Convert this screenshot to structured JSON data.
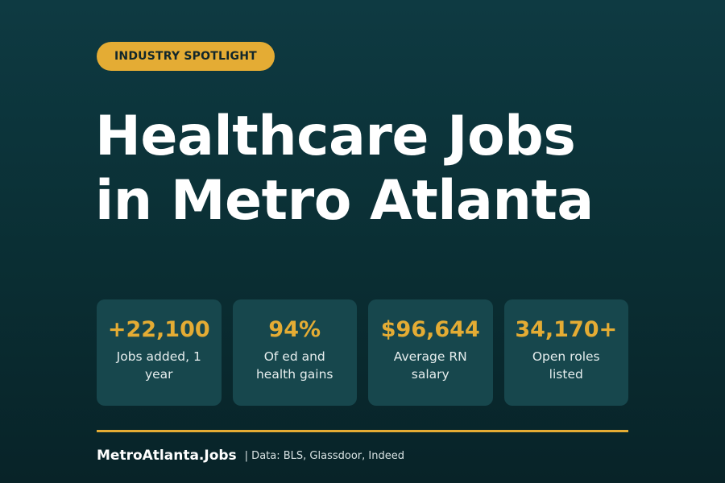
{
  "badge": "INDUSTRY SPOTLIGHT",
  "headline": {
    "line1": "Healthcare Jobs",
    "line2": "in Metro Atlanta"
  },
  "stats": [
    {
      "value": "+22,100",
      "label": "Jobs added, 1 year"
    },
    {
      "value": "94%",
      "label": "Of ed and health gains"
    },
    {
      "value": "$96,644",
      "label": "Average RN salary"
    },
    {
      "value": "34,170+",
      "label": "Open roles listed"
    }
  ],
  "footer": {
    "brand": "MetroAtlanta.Jobs",
    "source": "| Data: BLS, Glassdoor, Indeed"
  },
  "colors": {
    "accent": "#e4ac34",
    "background": "#0a2e33",
    "card": "#17474d",
    "text": "#ffffff"
  }
}
